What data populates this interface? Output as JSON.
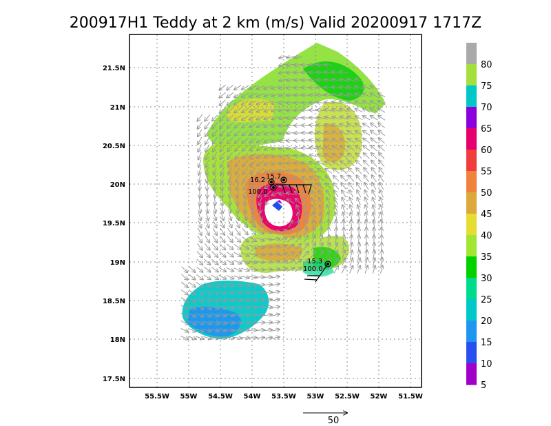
{
  "title": "200917H1 Teddy at 2 km (m/s) Valid 20200917 1717Z",
  "map": {
    "lon_ticks": [
      "55.5W",
      "55W",
      "54.5W",
      "54W",
      "53.5W",
      "53W",
      "52.5W",
      "52W",
      "51.5W"
    ],
    "lat_ticks": [
      "21.5N",
      "21N",
      "20.5N",
      "20N",
      "19.5N",
      "19N",
      "18.5N",
      "18N",
      "17.5N"
    ]
  },
  "colorbar": {
    "labels": [
      "80",
      "75",
      "70",
      "65",
      "60",
      "55",
      "50",
      "45",
      "40",
      "35",
      "30",
      "25",
      "20",
      "15",
      "10",
      "5"
    ],
    "colors": [
      "#aaaaaa",
      "#a4e03c",
      "#00c8c8",
      "#8c00dc",
      "#e6006e",
      "#f03c3c",
      "#f0823c",
      "#dcaa3c",
      "#e6dc32",
      "#a0e632",
      "#00d200",
      "#00dc8c",
      "#00c8c8",
      "#1e96f0",
      "#2850f0",
      "#a000c8"
    ]
  },
  "observations": [
    {
      "label": "16.2"
    },
    {
      "label": "15.7"
    },
    {
      "label": "100.0"
    },
    {
      "label": "15.3"
    },
    {
      "label": "100.0"
    }
  ],
  "scale": {
    "label": "50"
  }
}
